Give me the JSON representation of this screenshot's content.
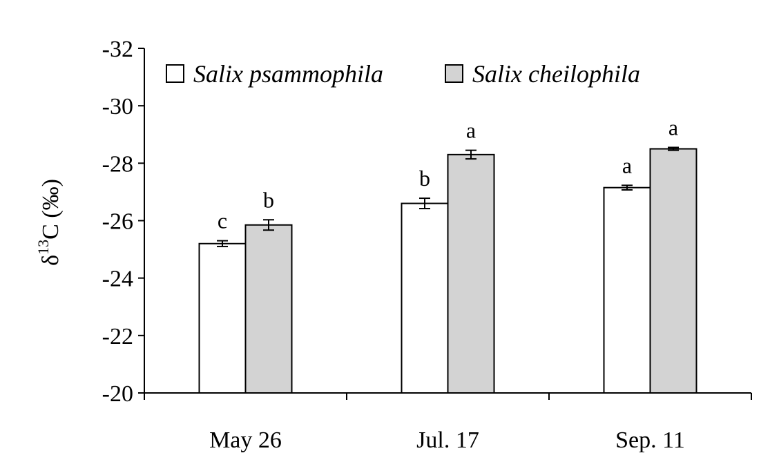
{
  "chart_data": {
    "type": "bar",
    "categories": [
      "May 26",
      "Jul. 17",
      "Sep. 11"
    ],
    "series": [
      {
        "name": "Salix psammophila",
        "values": [
          -25.2,
          -26.6,
          -27.15
        ],
        "errors": [
          0.1,
          0.18,
          0.08
        ],
        "significance": [
          "c",
          "b",
          "a"
        ],
        "color": "#ffffff"
      },
      {
        "name": "Salix cheilophila",
        "values": [
          -25.85,
          -28.3,
          -28.5
        ],
        "errors": [
          0.18,
          0.15,
          0.05
        ],
        "significance": [
          "b",
          "a",
          "a"
        ],
        "color": "#d3d3d3"
      }
    ],
    "ylim": [
      -20,
      -32
    ],
    "yticks": [
      -32,
      -30,
      -28,
      -26,
      -24,
      -22,
      -20
    ],
    "ylabel": {
      "prefix": "δ",
      "superscript": "13",
      "suffix": "C (‰)"
    },
    "xlabel": "",
    "legend_position": "top-left",
    "grid": false
  }
}
